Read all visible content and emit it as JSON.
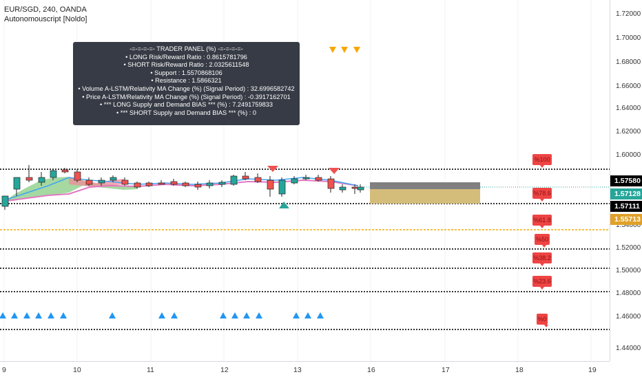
{
  "header": {
    "symbol_line": "EUR/SGD, 240, OANDA",
    "indicator_line": "Autonomouscript [Noldo]"
  },
  "trader_panel": {
    "lines": [
      "-=-=-=-=- TRADER PANEL (%) -=-=-=-=-",
      "• LONG Risk/Reward Ratio    : 0.8615781796",
      "• SHORT Risk/Reward Ratio    : 2.0325611548",
      "• Support      : 1.5570868106",
      "• Resistance      : 1.5866321",
      "• Volume A-LSTM/Relativity MA Change (%) (Signal Period)      : 32.6996582742",
      "• Price A-LSTM/Relativity MA Change (%) (Signal Period)      : -0.3917162701",
      "• *** LONG  Supply and Demand BIAS ***  (%)   : 7.2491759833",
      "• *** SHORT Supply and Demand BIAS *** (%)    : 0"
    ]
  },
  "price_axis": {
    "ticks": [
      "1.72000",
      "1.70000",
      "1.68000",
      "1.66000",
      "1.64000",
      "1.62000",
      "1.60000",
      "1.54000",
      "1.52000",
      "1.50000",
      "1.48000",
      "1.46000",
      "1.44000"
    ],
    "badges": [
      {
        "label": "1.57580",
        "bg": "#000000"
      },
      {
        "label": "1.57128",
        "bg": "#26a69a"
      },
      {
        "label": "1.57111",
        "bg": "#000000"
      },
      {
        "label": "1.55713",
        "bg": "#e0a12a"
      }
    ]
  },
  "time_axis": {
    "ticks": [
      "9",
      "10",
      "11",
      "12",
      "13",
      "16",
      "17",
      "18",
      "19"
    ]
  },
  "fib_levels": [
    "%100",
    "%78.6",
    "%61.8",
    "%50",
    "%38.2",
    "%23.6",
    "%0"
  ],
  "colors": {
    "up": "#26a69a",
    "down": "#ef5350",
    "fib_label": "#ee4444",
    "support_line": "#f2a900",
    "signal_triangle_up": "#26a69a",
    "signal_triangle_down": "#ef5350",
    "blue_marker": "#2196f3",
    "orange_marker": "#f7a600"
  }
}
